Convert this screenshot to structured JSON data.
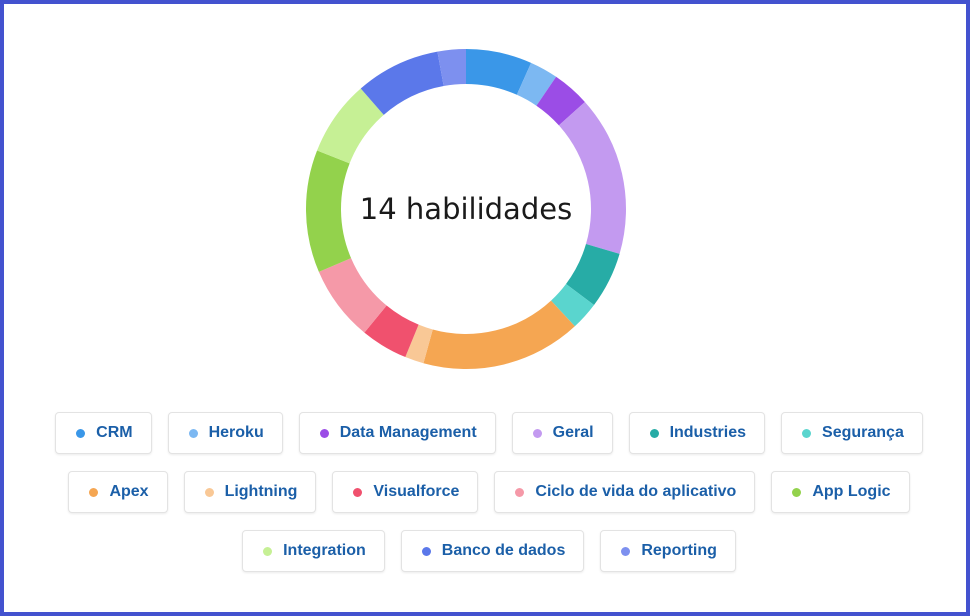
{
  "chart_data": {
    "type": "pie",
    "center_label": "14 habilidades",
    "legend_placement": "bottom",
    "series": [
      {
        "name": "CRM",
        "value": 7,
        "color": "#3a97e8"
      },
      {
        "name": "Heroku",
        "value": 3,
        "color": "#7cb8f2"
      },
      {
        "name": "Data Management",
        "value": 4,
        "color": "#9b4de6"
      },
      {
        "name": "Geral",
        "value": 17,
        "color": "#c39af0"
      },
      {
        "name": "Industries",
        "value": 6,
        "color": "#27aca6"
      },
      {
        "name": "Segurança",
        "value": 3,
        "color": "#5ad5ce"
      },
      {
        "name": "Apex",
        "value": 17,
        "color": "#f5a652"
      },
      {
        "name": "Lightning",
        "value": 2,
        "color": "#f9c896"
      },
      {
        "name": "Visualforce",
        "value": 5,
        "color": "#f0516e"
      },
      {
        "name": "Ciclo de vida do aplicativo",
        "value": 8,
        "color": "#f599a8"
      },
      {
        "name": "App Logic",
        "value": 13,
        "color": "#93d24c"
      },
      {
        "name": "Integration",
        "value": 8,
        "color": "#c6f095"
      },
      {
        "name": "Banco de dados",
        "value": 9,
        "color": "#5b78ea"
      },
      {
        "name": "Reporting",
        "value": 3,
        "color": "#7d90ef"
      }
    ]
  }
}
